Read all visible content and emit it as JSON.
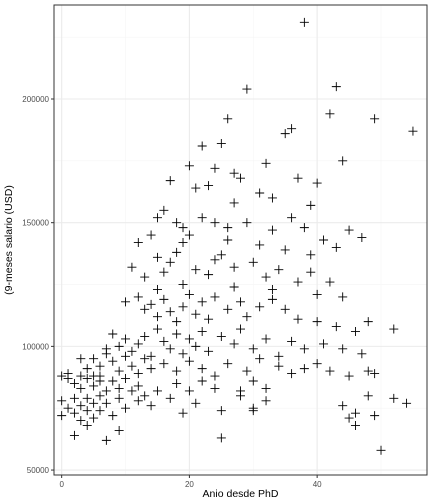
{
  "chart_data": {
    "type": "scatter",
    "title": "",
    "xlabel": "Anio desde PhD",
    "ylabel": "(9-meses salario (USD)",
    "xlim": [
      -1.2,
      57.2
    ],
    "ylim": [
      48000,
      238000
    ],
    "x_ticks": [
      0,
      20,
      40
    ],
    "x_tick_labels": [
      "0",
      "20",
      "40"
    ],
    "y_ticks": [
      50000,
      100000,
      150000,
      200000
    ],
    "y_tick_labels": [
      "50000",
      "100000",
      "150000",
      "200000"
    ],
    "x_minor_ticks": [
      10,
      30,
      50
    ],
    "y_minor_ticks": [
      75000,
      125000,
      175000,
      225000
    ],
    "marker": "plus",
    "grid": true,
    "theme": "bw",
    "colors": {
      "panel_border": "#333333",
      "grid_major": "#ebebeb",
      "grid_minor": "#f5f5f5",
      "point": "#000000"
    },
    "points": [
      [
        38,
        231000
      ],
      [
        29,
        204000
      ],
      [
        43,
        205000
      ],
      [
        26,
        192000
      ],
      [
        42,
        194000
      ],
      [
        49,
        192000
      ],
      [
        55,
        187000
      ],
      [
        35,
        186000
      ],
      [
        36,
        188000
      ],
      [
        25,
        182000
      ],
      [
        22,
        181000
      ],
      [
        20,
        173000
      ],
      [
        24,
        172000
      ],
      [
        27,
        170000
      ],
      [
        32,
        174000
      ],
      [
        17,
        167000
      ],
      [
        21,
        164000
      ],
      [
        23,
        165000
      ],
      [
        28,
        168000
      ],
      [
        31,
        162000
      ],
      [
        37,
        168000
      ],
      [
        40,
        166000
      ],
      [
        44,
        175000
      ],
      [
        12,
        142000
      ],
      [
        14,
        145000
      ],
      [
        15,
        152000
      ],
      [
        16,
        155000
      ],
      [
        18,
        150000
      ],
      [
        19,
        148000
      ],
      [
        22,
        152000
      ],
      [
        24,
        150000
      ],
      [
        26,
        148000
      ],
      [
        29,
        150000
      ],
      [
        33,
        147000
      ],
      [
        36,
        152000
      ],
      [
        38,
        148000
      ],
      [
        41,
        143000
      ],
      [
        45,
        147000
      ],
      [
        47,
        144000
      ],
      [
        11,
        132000
      ],
      [
        13,
        128000
      ],
      [
        15,
        136000
      ],
      [
        16,
        130000
      ],
      [
        17,
        134000
      ],
      [
        18,
        138000
      ],
      [
        19,
        125000
      ],
      [
        21,
        131000
      ],
      [
        23,
        129000
      ],
      [
        25,
        137000
      ],
      [
        27,
        132000
      ],
      [
        30,
        134000
      ],
      [
        32,
        128000
      ],
      [
        34,
        131000
      ],
      [
        37,
        126000
      ],
      [
        39,
        130000
      ],
      [
        42,
        126000
      ],
      [
        44,
        120000
      ],
      [
        10,
        118000
      ],
      [
        12,
        120000
      ],
      [
        13,
        115000
      ],
      [
        14,
        117000
      ],
      [
        15,
        112000
      ],
      [
        16,
        119000
      ],
      [
        17,
        114000
      ],
      [
        18,
        110000
      ],
      [
        19,
        116000
      ],
      [
        20,
        121000
      ],
      [
        21,
        113000
      ],
      [
        22,
        118000
      ],
      [
        23,
        111000
      ],
      [
        24,
        120000
      ],
      [
        26,
        115000
      ],
      [
        28,
        118000
      ],
      [
        29,
        112000
      ],
      [
        31,
        116000
      ],
      [
        33,
        119000
      ],
      [
        35,
        115000
      ],
      [
        37,
        111000
      ],
      [
        40,
        110000
      ],
      [
        43,
        108000
      ],
      [
        46,
        106000
      ],
      [
        52,
        107000
      ],
      [
        8,
        105000
      ],
      [
        9,
        100000
      ],
      [
        10,
        103000
      ],
      [
        11,
        98000
      ],
      [
        12,
        101000
      ],
      [
        13,
        104000
      ],
      [
        14,
        96000
      ],
      [
        15,
        107000
      ],
      [
        16,
        102000
      ],
      [
        17,
        99000
      ],
      [
        18,
        105000
      ],
      [
        19,
        97000
      ],
      [
        20,
        103000
      ],
      [
        21,
        100000
      ],
      [
        22,
        106000
      ],
      [
        23,
        98000
      ],
      [
        25,
        104000
      ],
      [
        27,
        101000
      ],
      [
        28,
        107000
      ],
      [
        30,
        99000
      ],
      [
        32,
        103000
      ],
      [
        34,
        96000
      ],
      [
        36,
        102000
      ],
      [
        38,
        99000
      ],
      [
        41,
        101000
      ],
      [
        44,
        99000
      ],
      [
        47,
        97000
      ],
      [
        5,
        95000
      ],
      [
        6,
        92000
      ],
      [
        7,
        97000
      ],
      [
        8,
        94000
      ],
      [
        9,
        90000
      ],
      [
        10,
        96000
      ],
      [
        11,
        92000
      ],
      [
        12,
        89000
      ],
      [
        13,
        95000
      ],
      [
        14,
        91000
      ],
      [
        16,
        93000
      ],
      [
        18,
        90000
      ],
      [
        20,
        94000
      ],
      [
        22,
        91000
      ],
      [
        24,
        88000
      ],
      [
        26,
        93000
      ],
      [
        29,
        90000
      ],
      [
        31,
        95000
      ],
      [
        34,
        92000
      ],
      [
        36,
        89000
      ],
      [
        38,
        91000
      ],
      [
        40,
        93000
      ],
      [
        42,
        90000
      ],
      [
        45,
        88000
      ],
      [
        48,
        90000
      ],
      [
        49,
        89000
      ],
      [
        0,
        88000
      ],
      [
        1,
        87000
      ],
      [
        1,
        89000
      ],
      [
        2,
        85000
      ],
      [
        3,
        88000
      ],
      [
        3,
        83000
      ],
      [
        4,
        87000
      ],
      [
        4,
        91000
      ],
      [
        5,
        84000
      ],
      [
        5,
        88000
      ],
      [
        6,
        86000
      ],
      [
        7,
        82000
      ],
      [
        8,
        86000
      ],
      [
        9,
        83000
      ],
      [
        10,
        87000
      ],
      [
        12,
        84000
      ],
      [
        15,
        82000
      ],
      [
        18,
        85000
      ],
      [
        20,
        82000
      ],
      [
        22,
        86000
      ],
      [
        24,
        83000
      ],
      [
        28,
        82000
      ],
      [
        30,
        86000
      ],
      [
        32,
        83000
      ],
      [
        0,
        78000
      ],
      [
        0,
        72000
      ],
      [
        1,
        75000
      ],
      [
        2,
        79000
      ],
      [
        2,
        73000
      ],
      [
        3,
        76000
      ],
      [
        3,
        70000
      ],
      [
        4,
        79000
      ],
      [
        4,
        74000
      ],
      [
        5,
        77000
      ],
      [
        5,
        71000
      ],
      [
        6,
        80000
      ],
      [
        6,
        74000
      ],
      [
        7,
        77000
      ],
      [
        8,
        72000
      ],
      [
        9,
        79000
      ],
      [
        10,
        75000
      ],
      [
        12,
        78000
      ],
      [
        14,
        76000
      ],
      [
        17,
        79000
      ],
      [
        19,
        73000
      ],
      [
        21,
        77000
      ],
      [
        25,
        74000
      ],
      [
        28,
        80000
      ],
      [
        30,
        75000
      ],
      [
        32,
        78000
      ],
      [
        44,
        76000
      ],
      [
        46,
        73000
      ],
      [
        48,
        80000
      ],
      [
        52,
        79000
      ],
      [
        54,
        77000
      ],
      [
        2,
        64000
      ],
      [
        4,
        68000
      ],
      [
        7,
        62000
      ],
      [
        9,
        66000
      ],
      [
        25,
        63000
      ],
      [
        30,
        74000
      ],
      [
        45,
        71000
      ],
      [
        49,
        72000
      ],
      [
        50,
        58000
      ],
      [
        46,
        68000
      ],
      [
        20,
        145000
      ],
      [
        26,
        143000
      ],
      [
        31,
        141000
      ],
      [
        35,
        139000
      ],
      [
        39,
        137000
      ],
      [
        43,
        140000
      ],
      [
        19,
        142000
      ],
      [
        27,
        158000
      ],
      [
        33,
        160000
      ],
      [
        39,
        157000
      ],
      [
        24,
        135000
      ],
      [
        15,
        123000
      ],
      [
        27,
        124000
      ],
      [
        33,
        123000
      ],
      [
        40,
        121000
      ],
      [
        48,
        110000
      ],
      [
        6,
        88000
      ],
      [
        11,
        82000
      ],
      [
        13,
        80000
      ],
      [
        3,
        95000
      ],
      [
        7,
        99000
      ]
    ]
  }
}
